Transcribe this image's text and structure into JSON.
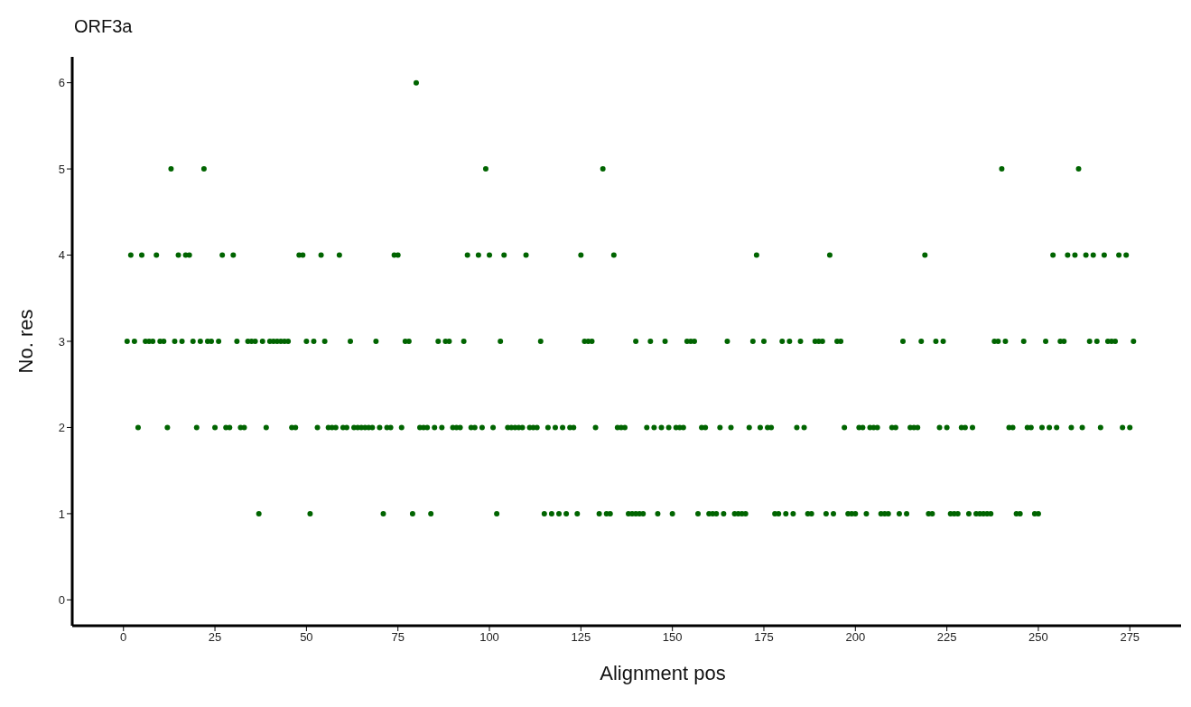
{
  "chart_data": {
    "type": "scatter",
    "title": "ORF3a",
    "xlabel": "Alignment pos",
    "ylabel": "No. res",
    "xlim": [
      -14,
      289
    ],
    "xticks": [
      0,
      25,
      50,
      75,
      100,
      125,
      150,
      175,
      200,
      225,
      250,
      275
    ],
    "ylim": [
      -0.3,
      6.3
    ],
    "yticks": [
      0,
      1,
      2,
      3,
      4,
      5,
      6
    ],
    "grid": false,
    "legend": false,
    "marker": "circle",
    "series": [
      {
        "color": "#006400",
        "x": [
          37,
          51,
          71,
          79,
          84,
          102,
          115,
          117,
          119,
          121,
          124,
          130,
          132,
          133,
          138,
          139,
          140,
          141,
          142,
          146,
          150,
          157,
          160,
          161,
          162,
          164,
          167,
          168,
          169,
          170,
          178,
          179,
          181,
          183,
          187,
          188,
          192,
          194,
          198,
          199,
          200,
          203,
          207,
          208,
          209,
          212,
          214,
          220,
          221,
          226,
          227,
          228,
          231,
          233,
          234,
          235,
          236,
          237,
          244,
          245,
          249,
          250
        ],
        "values": [
          1,
          1,
          1,
          1,
          1,
          1,
          1,
          1,
          1,
          1,
          1,
          1,
          1,
          1,
          1,
          1,
          1,
          1,
          1,
          1,
          1,
          1,
          1,
          1,
          1,
          1,
          1,
          1,
          1,
          1,
          1,
          1,
          1,
          1,
          1,
          1,
          1,
          1,
          1,
          1,
          1,
          1,
          1,
          1,
          1,
          1,
          1,
          1,
          1,
          1,
          1,
          1,
          1,
          1,
          1,
          1,
          1,
          1,
          1,
          1,
          1,
          1
        ]
      },
      {
        "color": "#006400",
        "x": [
          4,
          12,
          20,
          25,
          28,
          29,
          32,
          33,
          39,
          46,
          47,
          53,
          56,
          57,
          58,
          60,
          61,
          63,
          64,
          65,
          66,
          67,
          68,
          70,
          72,
          73,
          76,
          81,
          82,
          83,
          85,
          87,
          90,
          91,
          92,
          95,
          96,
          98,
          101,
          105,
          106,
          107,
          108,
          109,
          111,
          112,
          113,
          116,
          118,
          120,
          122,
          123,
          129,
          135,
          136,
          137,
          143,
          145,
          147,
          149,
          151,
          152,
          153,
          158,
          159,
          163,
          166,
          171,
          174,
          176,
          177,
          184,
          186,
          197,
          201,
          202,
          204,
          205,
          206,
          210,
          211,
          215,
          216,
          217,
          223,
          225,
          229,
          230,
          232,
          242,
          243,
          247,
          248,
          251,
          253,
          255,
          259,
          262,
          267,
          273,
          275
        ],
        "values": [
          2,
          2,
          2,
          2,
          2,
          2,
          2,
          2,
          2,
          2,
          2,
          2,
          2,
          2,
          2,
          2,
          2,
          2,
          2,
          2,
          2,
          2,
          2,
          2,
          2,
          2,
          2,
          2,
          2,
          2,
          2,
          2,
          2,
          2,
          2,
          2,
          2,
          2,
          2,
          2,
          2,
          2,
          2,
          2,
          2,
          2,
          2,
          2,
          2,
          2,
          2,
          2,
          2,
          2,
          2,
          2,
          2,
          2,
          2,
          2,
          2,
          2,
          2,
          2,
          2,
          2,
          2,
          2,
          2,
          2,
          2,
          2,
          2,
          2,
          2,
          2,
          2,
          2,
          2,
          2,
          2,
          2,
          2,
          2,
          2,
          2,
          2,
          2,
          2,
          2,
          2,
          2,
          2,
          2,
          2,
          2,
          2,
          2,
          2,
          2,
          2
        ]
      },
      {
        "color": "#006400",
        "x": [
          1,
          3,
          6,
          7,
          8,
          10,
          11,
          14,
          16,
          19,
          21,
          23,
          24,
          26,
          31,
          34,
          35,
          36,
          38,
          40,
          41,
          42,
          43,
          44,
          45,
          50,
          52,
          55,
          62,
          69,
          77,
          78,
          86,
          88,
          89,
          93,
          103,
          114,
          126,
          127,
          128,
          140,
          144,
          148,
          154,
          155,
          156,
          165,
          172,
          175,
          180,
          182,
          185,
          189,
          190,
          191,
          195,
          196,
          213,
          218,
          222,
          224,
          238,
          239,
          241,
          246,
          252,
          256,
          257,
          264,
          266,
          269,
          270,
          271,
          276
        ],
        "values": [
          3,
          3,
          3,
          3,
          3,
          3,
          3,
          3,
          3,
          3,
          3,
          3,
          3,
          3,
          3,
          3,
          3,
          3,
          3,
          3,
          3,
          3,
          3,
          3,
          3,
          3,
          3,
          3,
          3,
          3,
          3,
          3,
          3,
          3,
          3,
          3,
          3,
          3,
          3,
          3,
          3,
          3,
          3,
          3,
          3,
          3,
          3,
          3,
          3,
          3,
          3,
          3,
          3,
          3,
          3,
          3,
          3,
          3,
          3,
          3,
          3,
          3,
          3,
          3,
          3,
          3,
          3,
          3,
          3,
          3,
          3,
          3,
          3,
          3,
          3
        ]
      },
      {
        "color": "#006400",
        "x": [
          2,
          5,
          9,
          15,
          17,
          18,
          27,
          30,
          48,
          49,
          54,
          59,
          74,
          75,
          94,
          97,
          100,
          104,
          110,
          125,
          134,
          173,
          193,
          219,
          254,
          258,
          260,
          263,
          265,
          268,
          272,
          274
        ],
        "values": [
          4,
          4,
          4,
          4,
          4,
          4,
          4,
          4,
          4,
          4,
          4,
          4,
          4,
          4,
          4,
          4,
          4,
          4,
          4,
          4,
          4,
          4,
          4,
          4,
          4,
          4,
          4,
          4,
          4,
          4,
          4,
          4
        ]
      },
      {
        "color": "#006400",
        "x": [
          13,
          22,
          99,
          131,
          240,
          261
        ],
        "values": [
          5,
          5,
          5,
          5,
          5,
          5
        ]
      },
      {
        "color": "#006400",
        "x": [
          80
        ],
        "values": [
          6
        ]
      }
    ]
  }
}
